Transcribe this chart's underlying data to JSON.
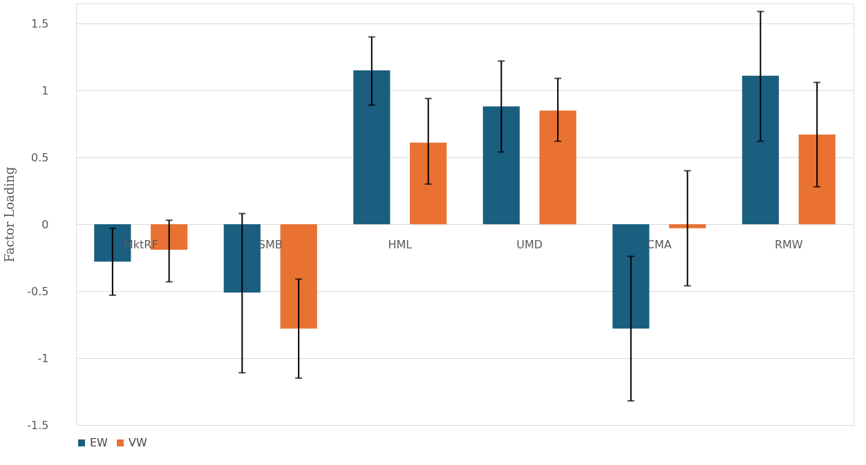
{
  "chart_data": {
    "type": "bar",
    "ylabel": "Factor Loading",
    "categories": [
      "MktRF",
      "SMB",
      "HML",
      "UMD",
      "CMA",
      "RMW"
    ],
    "series": [
      {
        "name": "EW",
        "color": "#1a5e80",
        "values": [
          -0.28,
          -0.51,
          1.15,
          0.88,
          -0.78,
          1.11
        ],
        "errors": [
          [
            -0.53,
            -0.03
          ],
          [
            -1.11,
            0.08
          ],
          [
            0.89,
            1.4
          ],
          [
            0.54,
            1.22
          ],
          [
            -1.32,
            -0.24
          ],
          [
            0.62,
            1.59
          ]
        ]
      },
      {
        "name": "VW",
        "color": "#e97132",
        "values": [
          -0.19,
          -0.78,
          0.61,
          0.85,
          -0.03,
          0.67
        ],
        "errors": [
          [
            -0.43,
            0.03
          ],
          [
            -1.15,
            -0.41
          ],
          [
            0.3,
            0.94
          ],
          [
            0.62,
            1.09
          ],
          [
            -0.46,
            0.4
          ],
          [
            0.28,
            1.06
          ]
        ]
      }
    ],
    "ylim": [
      -1.5,
      1.65
    ],
    "yticks": [
      -1.5,
      {
        "value": -1,
        "label": "-1"
      },
      -0.5,
      0,
      0.5,
      {
        "value": 1,
        "label": "1"
      },
      1.5
    ],
    "grid": "y",
    "legend": "bottom"
  }
}
